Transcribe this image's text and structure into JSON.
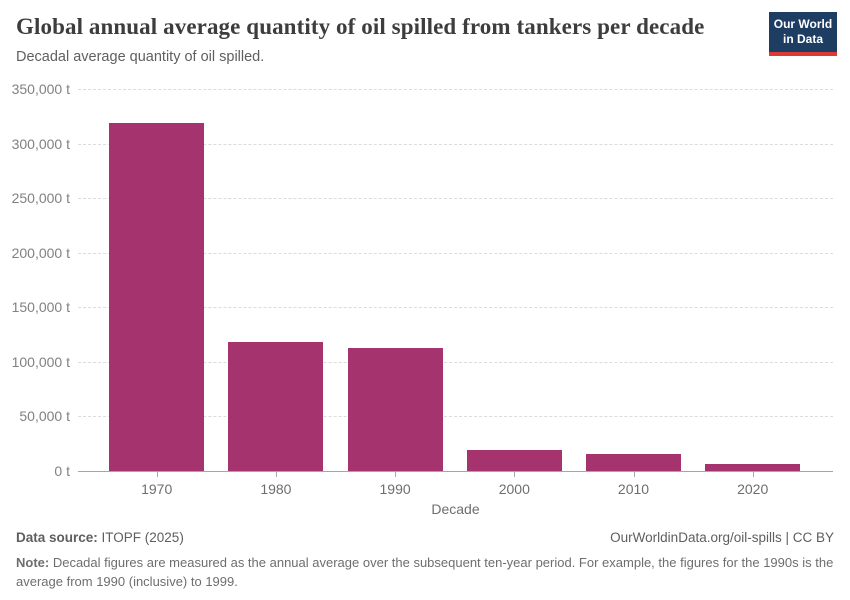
{
  "header": {
    "title": "Global annual average quantity of oil spilled from tankers per decade",
    "subtitle": "Decadal average quantity of oil spilled.",
    "logo": {
      "line1": "Our World",
      "line2": "in Data",
      "bg_color": "#1d3d63",
      "accent_color": "#dc3a32"
    }
  },
  "chart_data": {
    "type": "bar",
    "title": "Global annual average quantity of oil spilled from tankers per decade",
    "subtitle": "Decadal average quantity of oil spilled.",
    "categories": [
      "1970",
      "1980",
      "1990",
      "2000",
      "2010",
      "2020"
    ],
    "values": [
      319000,
      118000,
      113000,
      19000,
      16000,
      6500
    ],
    "xlabel": "Decade",
    "ylabel": "",
    "unit": "t",
    "ylim": [
      0,
      350000
    ],
    "ytick_values": [
      0,
      50000,
      100000,
      150000,
      200000,
      250000,
      300000,
      350000
    ],
    "ytick_labels": [
      "0 t",
      "50,000 t",
      "100,000 t",
      "150,000 t",
      "200,000 t",
      "250,000 t",
      "300,000 t",
      "350,000 t"
    ],
    "bar_color": "#a5336e",
    "grid": true,
    "gridline_style": "dashed",
    "legend": "none"
  },
  "footer": {
    "source_label": "Data source:",
    "source_value": " ITOPF (2025)",
    "attribution": "OurWorldinData.org/oil-spills | CC BY",
    "note_label": "Note:",
    "note_text": " Decadal figures are measured as the annual average over the subsequent ten-year period. For example, the figures for the 1990s is the average from 1990 (inclusive) to 1999."
  }
}
